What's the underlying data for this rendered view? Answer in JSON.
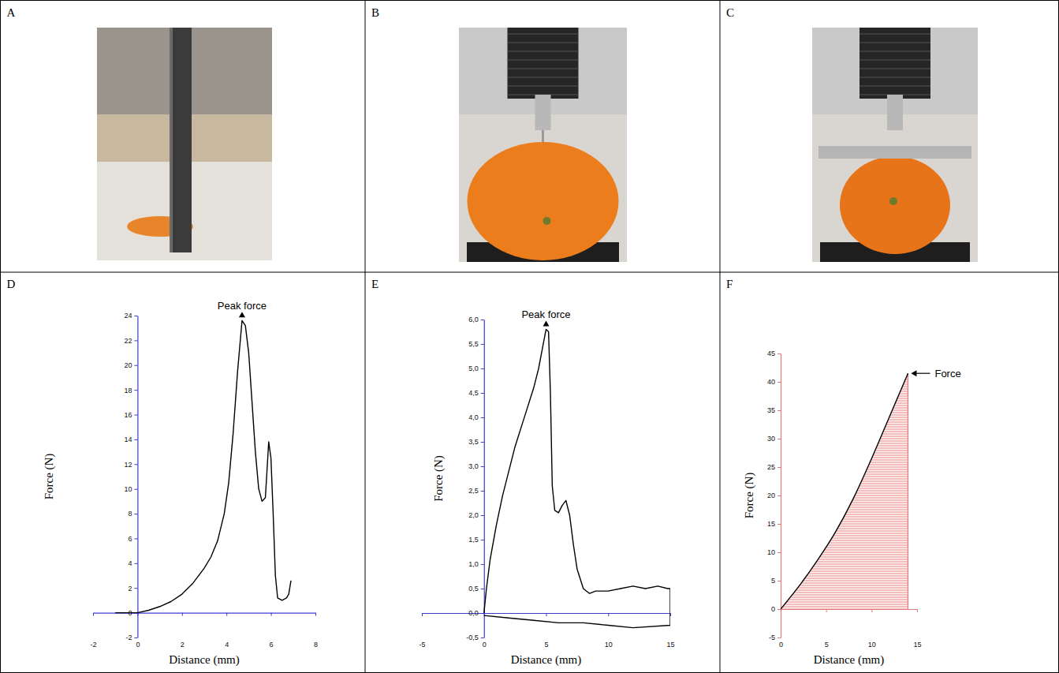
{
  "photos": [
    {
      "panel": "A"
    },
    {
      "panel": "B"
    },
    {
      "panel": "C"
    }
  ],
  "chart_data": [
    {
      "type": "line",
      "panel": "D",
      "x_label": "Distance (mm)",
      "y_label": "Force (N)",
      "xlim": [
        -2,
        8
      ],
      "xticks": [
        -2,
        0,
        2,
        4,
        6,
        8
      ],
      "ylim": [
        -2,
        24
      ],
      "yticks": [
        -2,
        0,
        2,
        4,
        6,
        8,
        10,
        12,
        14,
        16,
        18,
        20,
        22,
        24
      ],
      "series": [
        {
          "color": "#000000",
          "x": [
            -1,
            0,
            0.5,
            1,
            1.5,
            2,
            2.5,
            3,
            3.3,
            3.6,
            3.9,
            4.1,
            4.3,
            4.5,
            4.7,
            4.85,
            5.0,
            5.15,
            5.3,
            5.45,
            5.6,
            5.75,
            5.9,
            6.0,
            6.1,
            6.2,
            6.3,
            6.5,
            6.7,
            6.8,
            6.9
          ],
          "values": [
            0,
            0,
            0.2,
            0.5,
            0.9,
            1.5,
            2.4,
            3.6,
            4.5,
            5.8,
            8,
            10.5,
            14.5,
            19.5,
            23.6,
            23.2,
            21,
            17,
            13,
            10,
            9,
            9.3,
            13.8,
            12.5,
            8,
            3,
            1.2,
            1,
            1.2,
            1.5,
            2.6
          ]
        }
      ],
      "annotations": [
        {
          "text": "Peak force",
          "x": 4.7,
          "y": 23.6
        }
      ]
    },
    {
      "type": "line",
      "panel": "E",
      "x_label": "Distance (mm)",
      "y_label": "Force (N)",
      "xlim": [
        -5,
        15
      ],
      "xticks": [
        -5,
        0,
        5,
        10,
        15
      ],
      "ylim": [
        -0.5,
        6.0
      ],
      "yticks": [
        {
          "value": -0.5,
          "label": "-0,5"
        },
        {
          "value": 0,
          "label": "0,0"
        },
        {
          "value": 0.5,
          "label": "0,5"
        },
        {
          "value": 1.0,
          "label": "1,0"
        },
        {
          "value": 1.5,
          "label": "1,5"
        },
        {
          "value": 2.0,
          "label": "2,0"
        },
        {
          "value": 2.5,
          "label": "2,5"
        },
        {
          "value": 3.0,
          "label": "3,0"
        },
        {
          "value": 3.5,
          "label": "3,5"
        },
        {
          "value": 4.0,
          "label": "4,0"
        },
        {
          "value": 4.5,
          "label": "4,5"
        },
        {
          "value": 5.0,
          "label": "5,0"
        },
        {
          "value": 5.5,
          "label": "5,5"
        },
        {
          "value": 6.0,
          "label": "6,0"
        }
      ],
      "series": [
        {
          "color": "#000000",
          "x": [
            0,
            0.2,
            0.5,
            1,
            1.5,
            2,
            2.5,
            3,
            3.5,
            4,
            4.4,
            4.7,
            5.0,
            5.2,
            5.35,
            5.5,
            5.7,
            6.0,
            6.3,
            6.6,
            6.9,
            7.2,
            7.5,
            8,
            8.5,
            9,
            10,
            11,
            12,
            13,
            14,
            14.8,
            15,
            15,
            12,
            10,
            8,
            6,
            4,
            2,
            0
          ],
          "values": [
            0,
            0.5,
            1.1,
            1.8,
            2.4,
            2.9,
            3.4,
            3.8,
            4.2,
            4.6,
            5.0,
            5.4,
            5.8,
            5.75,
            4.5,
            2.6,
            2.1,
            2.05,
            2.2,
            2.3,
            2.0,
            1.4,
            0.9,
            0.5,
            0.4,
            0.45,
            0.45,
            0.5,
            0.55,
            0.5,
            0.55,
            0.5,
            0.5,
            -0.25,
            -0.3,
            -0.25,
            -0.2,
            -0.2,
            -0.15,
            -0.1,
            -0.05
          ]
        }
      ],
      "annotations": [
        {
          "text": "Peak force",
          "x": 5.0,
          "y": 5.8
        }
      ]
    },
    {
      "type": "area",
      "panel": "F",
      "x_label": "Distance (mm)",
      "y_label": "Force (N)",
      "xlim": [
        0,
        15
      ],
      "xticks": [
        0,
        5,
        10,
        15
      ],
      "ylim": [
        -5,
        45
      ],
      "yticks": [
        -5,
        0,
        5,
        10,
        15,
        20,
        25,
        30,
        35,
        40,
        45
      ],
      "series": [
        {
          "color": "#000000",
          "x": [
            0,
            2,
            4,
            6,
            8,
            10,
            12,
            14
          ],
          "values": [
            0,
            4,
            8.5,
            13.5,
            19.5,
            26.5,
            34,
            41.5
          ]
        }
      ],
      "annotations": [
        {
          "text": "Force",
          "x": 14,
          "y": 41.5
        }
      ]
    }
  ]
}
